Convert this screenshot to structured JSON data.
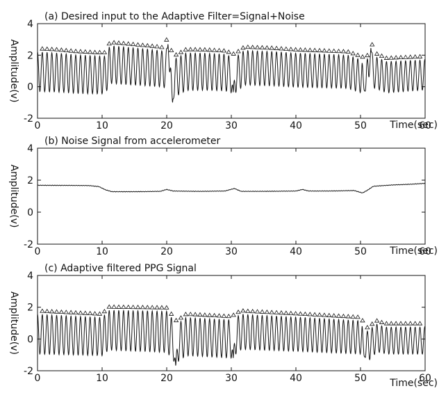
{
  "chart_data": [
    {
      "type": "line",
      "title": "(a) Desired input to the Adaptive Filter=Signal+Noise",
      "xlabel": "Time(sec)",
      "ylabel": "Amplitude(v)",
      "xlim": [
        0,
        60
      ],
      "ylim": [
        -2,
        4
      ],
      "x_ticks": [
        0,
        10,
        20,
        30,
        40,
        50,
        60
      ],
      "y_ticks": [
        -2,
        0,
        2,
        4
      ],
      "grid": false,
      "series": [
        {
          "baseline": [
            [
              0,
              0.95
            ],
            [
              3,
              0.9
            ],
            [
              6,
              0.8
            ],
            [
              9,
              0.75
            ],
            [
              10.5,
              0.75
            ],
            [
              11.2,
              1.4
            ],
            [
              13,
              1.35
            ],
            [
              16,
              1.25
            ],
            [
              19,
              1.15
            ],
            [
              20.5,
              1.0
            ],
            [
              21.5,
              0.6
            ],
            [
              23,
              0.95
            ],
            [
              26,
              0.95
            ],
            [
              29,
              0.9
            ],
            [
              30.5,
              0.7
            ],
            [
              32,
              1.2
            ],
            [
              36,
              1.15
            ],
            [
              40,
              1.05
            ],
            [
              44,
              1.0
            ],
            [
              48,
              0.95
            ],
            [
              50.5,
              0.6
            ],
            [
              52,
              0.95
            ],
            [
              54,
              0.6
            ],
            [
              56,
              0.65
            ],
            [
              60,
              0.75
            ]
          ],
          "amplitude": [
            [
              0,
              1.25
            ],
            [
              10,
              1.2
            ],
            [
              11,
              1.2
            ],
            [
              20,
              1.15
            ],
            [
              22,
              1.2
            ],
            [
              30,
              1.15
            ],
            [
              32,
              1.1
            ],
            [
              50,
              1.05
            ],
            [
              53,
              1.0
            ],
            [
              60,
              0.95
            ]
          ],
          "period_sec": 0.74,
          "spikes": [
            {
              "x": 20.2,
              "y": 2.75
            },
            {
              "x": 20.9,
              "y": -1.05
            },
            {
              "x": 30.3,
              "y": -0.35
            },
            {
              "x": 50.6,
              "y": -0.25
            },
            {
              "x": 51.6,
              "y": 2.45
            }
          ],
          "markers": "triangles at each peak"
        }
      ]
    },
    {
      "type": "line",
      "title": "(b) Noise Signal from accelerometer",
      "xlabel": "Time(sec)",
      "ylabel": "Amplitude(v)",
      "xlim": [
        0,
        60
      ],
      "ylim": [
        -2,
        4
      ],
      "x_ticks": [
        0,
        10,
        20,
        30,
        40,
        50,
        60
      ],
      "y_ticks": [
        -2,
        0,
        2,
        4
      ],
      "grid": false,
      "series": [
        {
          "points": [
            [
              0,
              1.68
            ],
            [
              5,
              1.67
            ],
            [
              8,
              1.66
            ],
            [
              9.5,
              1.6
            ],
            [
              10.5,
              1.4
            ],
            [
              11.5,
              1.28
            ],
            [
              15,
              1.28
            ],
            [
              19,
              1.3
            ],
            [
              20,
              1.42
            ],
            [
              21,
              1.32
            ],
            [
              25,
              1.3
            ],
            [
              29,
              1.32
            ],
            [
              30.5,
              1.48
            ],
            [
              31.5,
              1.3
            ],
            [
              35,
              1.3
            ],
            [
              40,
              1.32
            ],
            [
              41,
              1.42
            ],
            [
              42,
              1.32
            ],
            [
              45,
              1.32
            ],
            [
              49,
              1.35
            ],
            [
              50.3,
              1.2
            ],
            [
              51,
              1.35
            ],
            [
              52,
              1.62
            ],
            [
              55,
              1.7
            ],
            [
              58,
              1.75
            ],
            [
              60,
              1.8
            ]
          ]
        }
      ]
    },
    {
      "type": "line",
      "title": "(c) Adaptive filtered PPG Signal",
      "xlabel": "Time(sec)",
      "ylabel": "Amplitude(v)",
      "xlim": [
        0,
        60
      ],
      "ylim": [
        -2,
        4
      ],
      "x_ticks": [
        0,
        10,
        20,
        30,
        40,
        50,
        60
      ],
      "y_ticks": [
        -2,
        0,
        2,
        4
      ],
      "grid": false,
      "series": [
        {
          "baseline": [
            [
              0,
              0.3
            ],
            [
              10,
              0.15
            ],
            [
              11,
              0.55
            ],
            [
              20,
              0.45
            ],
            [
              21.5,
              -0.3
            ],
            [
              23,
              0.15
            ],
            [
              30,
              0.0
            ],
            [
              31.5,
              0.45
            ],
            [
              40,
              0.3
            ],
            [
              50,
              0.1
            ],
            [
              51,
              -0.5
            ],
            [
              52.5,
              0.05
            ],
            [
              54,
              -0.1
            ],
            [
              60,
              -0.1
            ]
          ],
          "amplitude": [
            [
              0,
              1.25
            ],
            [
              10,
              1.2
            ],
            [
              11,
              1.25
            ],
            [
              20,
              1.3
            ],
            [
              22,
              1.2
            ],
            [
              30,
              1.2
            ],
            [
              32,
              1.1
            ],
            [
              50,
              1.05
            ],
            [
              53,
              0.85
            ],
            [
              60,
              0.85
            ]
          ],
          "period_sec": 0.74,
          "spikes": [
            {
              "x": 21.4,
              "y": -1.75
            },
            {
              "x": 30.3,
              "y": -1.2
            },
            {
              "x": 50.6,
              "y": -1.1
            }
          ],
          "markers": "triangles at each peak"
        }
      ]
    }
  ]
}
